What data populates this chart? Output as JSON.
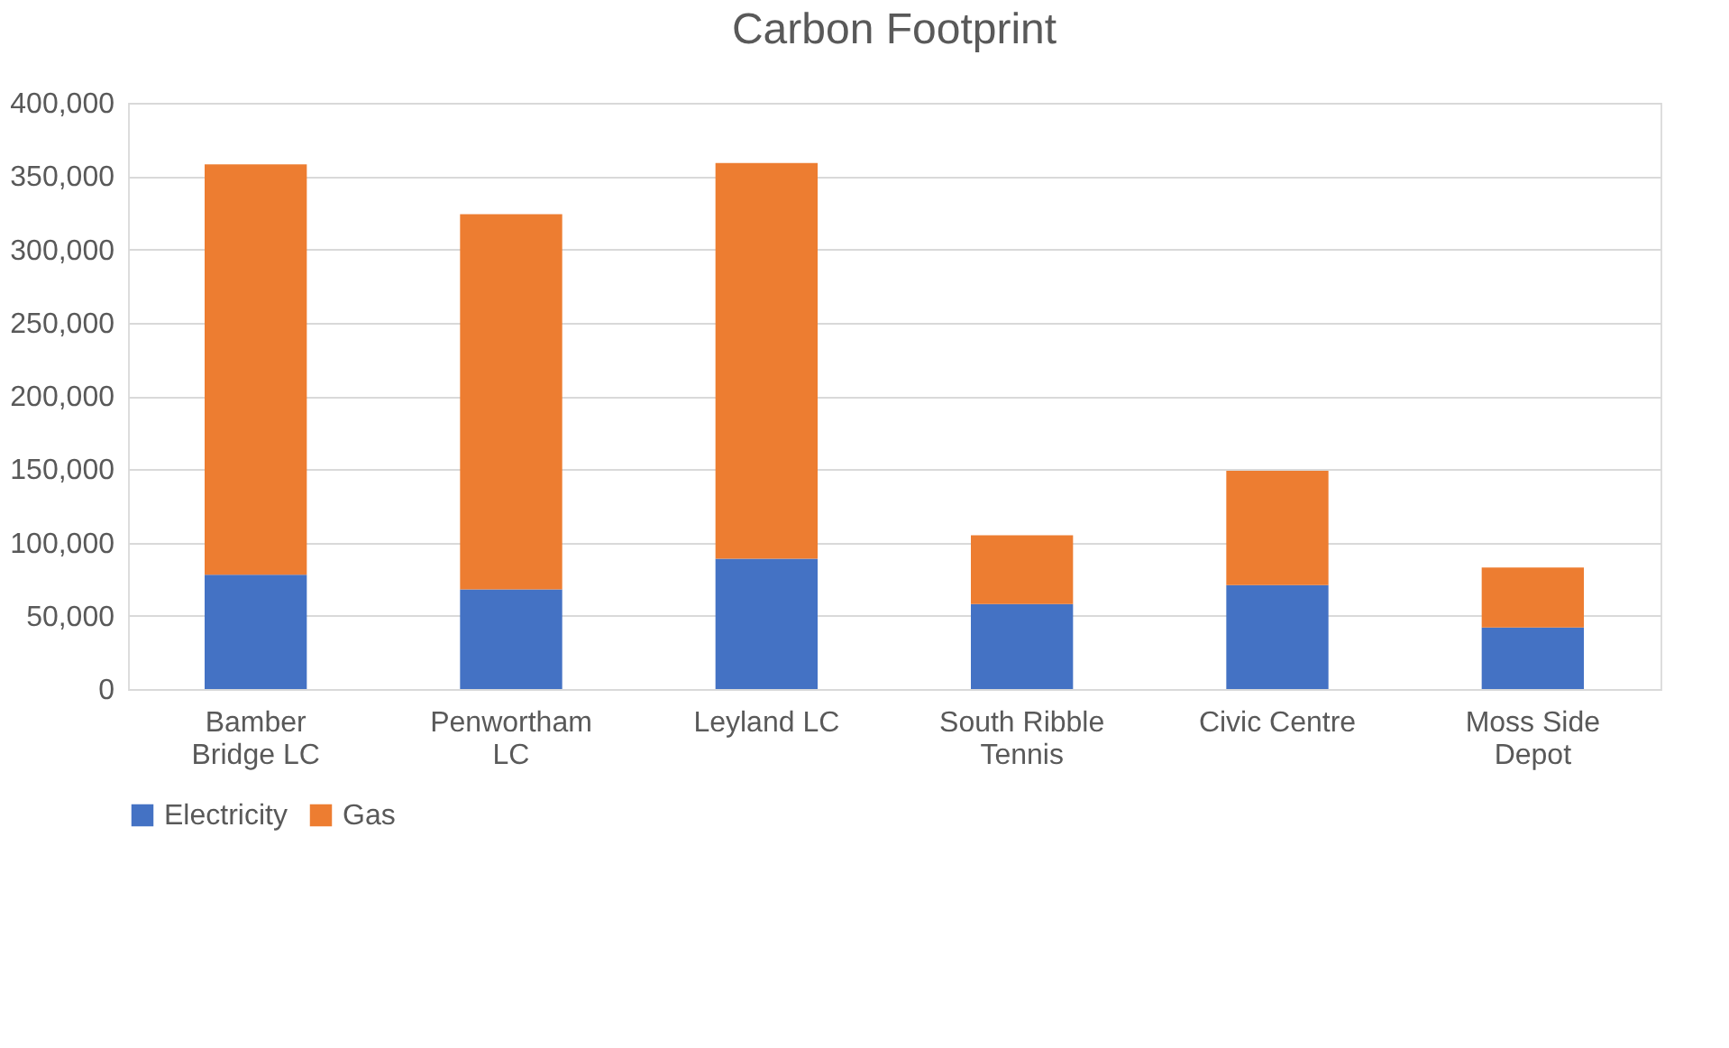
{
  "chart_data": {
    "type": "bar",
    "title": "Carbon Footprint",
    "stacked": true,
    "categories": [
      "Bamber Bridge LC",
      "Penwortham LC",
      "Leyland LC",
      "South Ribble Tennis",
      "Civic Centre",
      "Moss Side Depot"
    ],
    "series": [
      {
        "name": "Electricity",
        "color": "#4472c4",
        "values": [
          78000,
          68000,
          89000,
          58000,
          71000,
          42000
        ]
      },
      {
        "name": "Gas",
        "color": "#ed7d31",
        "values": [
          280000,
          256000,
          270000,
          47000,
          78000,
          41000
        ]
      }
    ],
    "ylim": [
      0,
      400000
    ],
    "yticks": [
      {
        "value": 0,
        "label": "0"
      },
      {
        "value": 50000,
        "label": "50,000"
      },
      {
        "value": 100000,
        "label": "100,000"
      },
      {
        "value": 150000,
        "label": "150,000"
      },
      {
        "value": 200000,
        "label": "200,000"
      },
      {
        "value": 250000,
        "label": "250,000"
      },
      {
        "value": 300000,
        "label": "300,000"
      },
      {
        "value": 350000,
        "label": "350,000"
      },
      {
        "value": 400000,
        "label": "400,000"
      }
    ],
    "grid": "y",
    "legend": "bottom"
  }
}
